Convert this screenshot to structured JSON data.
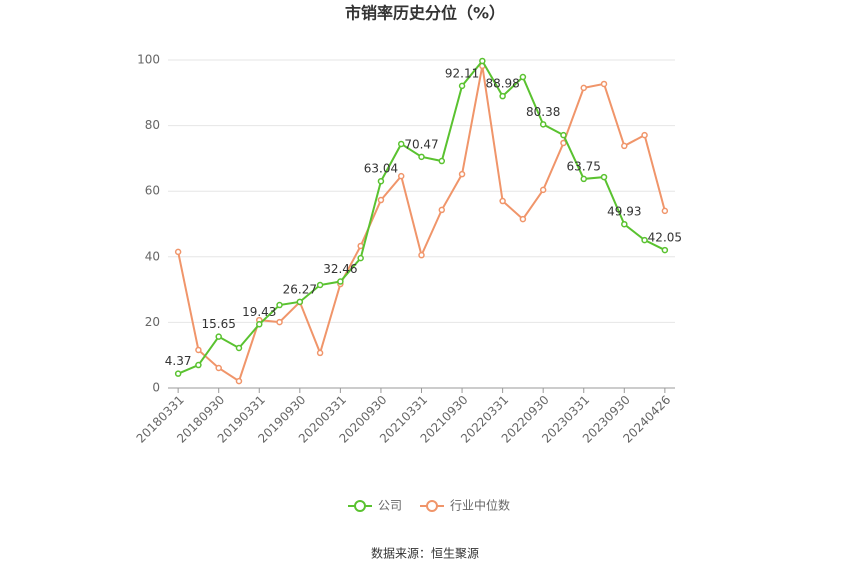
{
  "chart_data": {
    "type": "line",
    "title": "市销率历史分位（%）",
    "categories": [
      "20180331",
      null,
      "20180930",
      null,
      "20190331",
      null,
      "20190930",
      null,
      "20200331",
      null,
      "20200930",
      null,
      "20210331",
      null,
      "20210930",
      null,
      "20220331",
      null,
      "20220930",
      null,
      "20230331",
      null,
      "20230930",
      null,
      "20240426"
    ],
    "series": [
      {
        "name": "公司",
        "color": "#5ac230",
        "values": [
          4.37,
          7.0,
          15.65,
          12.2,
          19.43,
          25.3,
          26.27,
          31.4,
          32.46,
          39.6,
          63.04,
          74.4,
          70.47,
          69.2,
          92.11,
          99.7,
          88.98,
          94.8,
          80.38,
          77.1,
          63.75,
          64.3,
          49.93,
          45.1,
          42.05
        ]
      },
      {
        "name": "行业中位数",
        "color": "#f0956a",
        "values": [
          41.5,
          11.6,
          6.1,
          2.1,
          20.7,
          20.1,
          26.2,
          10.7,
          31.7,
          43.3,
          57.3,
          64.6,
          40.5,
          54.3,
          65.2,
          98.2,
          57.0,
          51.5,
          60.4,
          74.7,
          91.5,
          92.7,
          73.8,
          77.1,
          54.0
        ]
      }
    ],
    "ylim": [
      0,
      100
    ],
    "yticks": [
      0,
      20,
      40,
      60,
      80,
      100
    ],
    "grid": true,
    "legend": "bottom",
    "source": "数据来源：恒生聚源"
  }
}
